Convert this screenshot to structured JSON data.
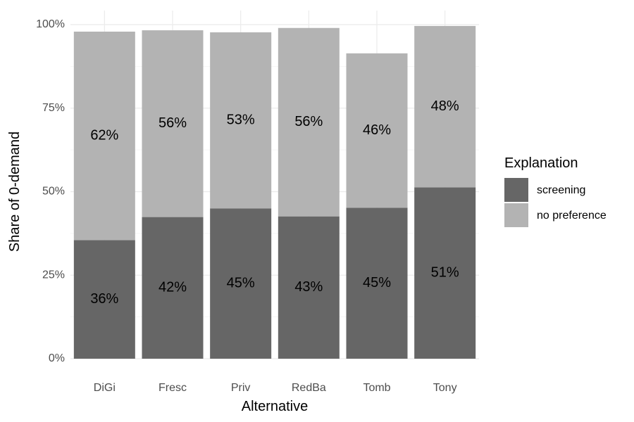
{
  "chart_data": {
    "type": "bar",
    "stacked": true,
    "categories": [
      "DiGi",
      "Fresc",
      "Priv",
      "RedBa",
      "Tomb",
      "Tony"
    ],
    "series": [
      {
        "name": "screening",
        "values": [
          35.5,
          42.4,
          45.0,
          42.6,
          45.2,
          51.3
        ],
        "labels": [
          "36%",
          "42%",
          "45%",
          "43%",
          "45%",
          "51%"
        ],
        "color": "#666666"
      },
      {
        "name": "no preference",
        "values": [
          62.4,
          55.9,
          52.7,
          56.4,
          46.2,
          48.3
        ],
        "labels": [
          "62%",
          "56%",
          "53%",
          "56%",
          "46%",
          "48%"
        ],
        "color": "#b3b3b3"
      }
    ],
    "xlabel": "Alternative",
    "ylabel": "Share of 0-demand",
    "ylim": [
      0,
      100
    ],
    "yticks": [
      0,
      25,
      50,
      75,
      100
    ],
    "ytick_labels": [
      "0%",
      "25%",
      "50%",
      "75%",
      "100%"
    ],
    "legend": {
      "title": "Explanation",
      "position": "right"
    },
    "grid": true
  }
}
